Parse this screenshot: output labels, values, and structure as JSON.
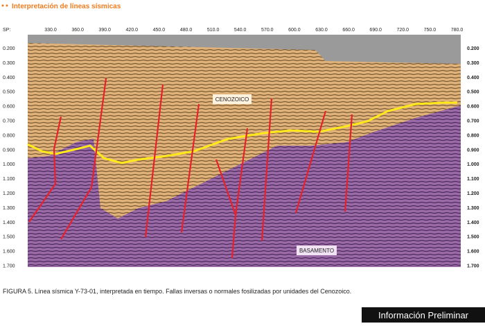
{
  "header": {
    "title": "Interpretación de líneas sísmicas"
  },
  "axis": {
    "sp_label": "SP:",
    "sp_values": [
      "330.0",
      "360.0",
      "390.0",
      "420.0",
      "450.0",
      "480.0",
      "510.0",
      "540.0",
      "570.0",
      "600.0",
      "630.0",
      "660.0",
      "690.0",
      "720.0",
      "750.0",
      "780.0"
    ],
    "time_values": [
      "0.200",
      "0.300",
      "0.400",
      "0.500",
      "0.600",
      "0.700",
      "0.800",
      "0.900",
      "1.000",
      "1.100",
      "1.200",
      "1.300",
      "1.400",
      "1.500",
      "1.600",
      "1.700"
    ]
  },
  "annotations": {
    "cenozoico": "CENOZOICO",
    "basamento": "BASAMENTO"
  },
  "caption": "FIGURA 5. Línea sísmica Y-73-01, interpretada en tiempo. Fallas inversas o normales fosilizadas por unidades del Cenozoico.",
  "badge": "Información Preliminar"
}
